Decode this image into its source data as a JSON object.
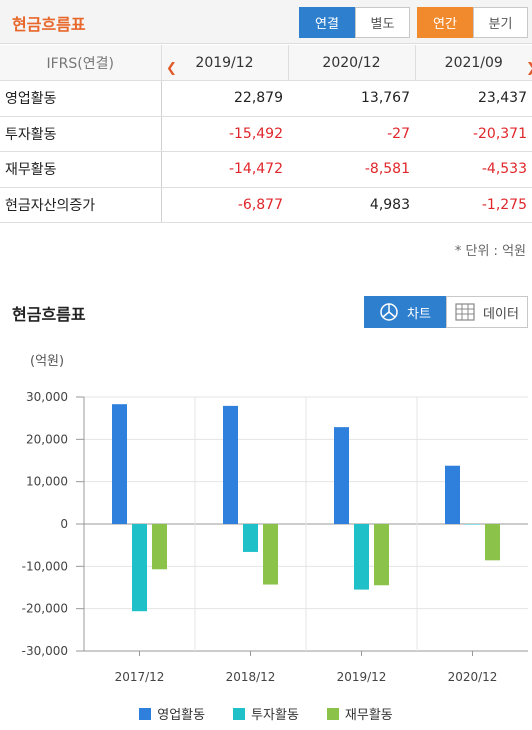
{
  "header": {
    "title": "현금흐름표",
    "consolidated": "연결",
    "separate": "별도",
    "annual": "연간",
    "quarterly": "분기"
  },
  "table": {
    "label_header": "IFRS(연결)",
    "periods": [
      "2019/12",
      "2020/12",
      "2021/09"
    ],
    "rows": [
      {
        "label": "영업활동",
        "values": [
          "22,879",
          "13,767",
          "23,437"
        ],
        "neg": [
          false,
          false,
          false
        ]
      },
      {
        "label": "투자활동",
        "values": [
          "-15,492",
          "-27",
          "-20,371"
        ],
        "neg": [
          true,
          true,
          true
        ]
      },
      {
        "label": "재무활동",
        "values": [
          "-14,472",
          "-8,581",
          "-4,533"
        ],
        "neg": [
          true,
          true,
          true
        ]
      },
      {
        "label": "현금자산의증가",
        "values": [
          "-6,877",
          "4,983",
          "-1,275"
        ],
        "neg": [
          true,
          false,
          true
        ]
      }
    ],
    "unit_note": "* 단위 : 억원"
  },
  "chart_section": {
    "title": "현금흐름표",
    "chart_toggle": "차트",
    "data_toggle": "데이터"
  },
  "chart_data": {
    "type": "bar",
    "unit_label": "(억원)",
    "categories": [
      "2017/12",
      "2018/12",
      "2019/12",
      "2020/12"
    ],
    "series": [
      {
        "name": "영업활동",
        "color": "#2f7fdc",
        "values": [
          28300,
          27900,
          22879,
          13767
        ]
      },
      {
        "name": "투자활동",
        "color": "#1fc0c8",
        "values": [
          -20600,
          -6600,
          -15492,
          -27
        ]
      },
      {
        "name": "재무활동",
        "color": "#8bc34a",
        "values": [
          -10700,
          -14300,
          -14472,
          -8581
        ]
      }
    ],
    "ylim": [
      -30000,
      30000
    ],
    "yticks": [
      30000,
      20000,
      10000,
      0,
      -10000,
      -20000,
      -30000
    ],
    "ytick_labels": [
      "30,000",
      "20,000",
      "10,000",
      "0",
      "-10,000",
      "-20,000",
      "-30,000"
    ],
    "grid": true,
    "legend": "bottom"
  }
}
